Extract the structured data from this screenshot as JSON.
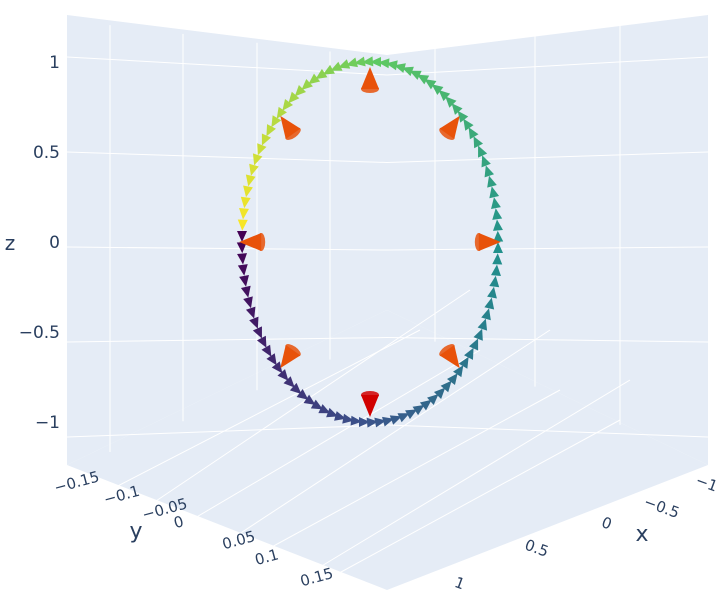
{
  "chart_data": {
    "type": "cone",
    "axes": {
      "x": {
        "title": "x",
        "ticks": [
          -1,
          -0.5,
          0,
          0.5,
          1
        ],
        "tick_labels": [
          "−1",
          "−0.5",
          "0",
          "0.5",
          "1"
        ]
      },
      "y": {
        "title": "y",
        "ticks": [
          -0.15,
          -0.1,
          -0.05,
          0,
          0.05,
          0.1,
          0.15
        ],
        "tick_labels": [
          "−0.15",
          "−0.1",
          "−0.05",
          "0",
          "0.05",
          "0.1",
          "0.15"
        ]
      },
      "z": {
        "title": "z",
        "ticks": [
          -1,
          -0.5,
          0,
          0.5,
          1
        ],
        "tick_labels": [
          "−1",
          "−0.5",
          "0",
          "0.5",
          "1"
        ]
      }
    },
    "grid": true,
    "series": [
      {
        "kind": "circle-cones",
        "shape": "unit circle in x–z plane, y = 0",
        "count": 100,
        "direction": "tangent, counter-clockwise",
        "colorscale": [
          "#440154",
          "#3b528b",
          "#21918c",
          "#5ec962",
          "#fde725"
        ]
      },
      {
        "kind": "orange-cones",
        "angles_deg": [
          90,
          45,
          0,
          -45,
          -90,
          -135,
          180,
          135
        ],
        "direction": "outward (radial)",
        "color": "#e8520a",
        "bottom_color": "#d10000"
      }
    ]
  },
  "colors": {
    "scene_bg": "#e5ecf6",
    "grid": "#ffffff",
    "tick_text": "#2a3f5f"
  }
}
